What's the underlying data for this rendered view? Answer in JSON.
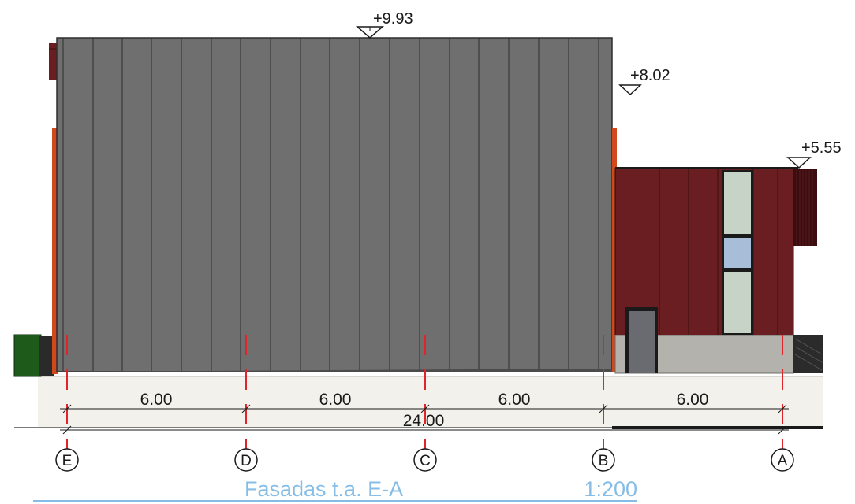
{
  "levels": [
    {
      "label": "+9.93"
    },
    {
      "label": "+8.02"
    },
    {
      "label": "+5.55"
    }
  ],
  "axes": [
    {
      "label": "E"
    },
    {
      "label": "D"
    },
    {
      "label": "C"
    },
    {
      "label": "B"
    },
    {
      "label": "A"
    }
  ],
  "spans": [
    {
      "label": "6.00"
    },
    {
      "label": "6.00"
    },
    {
      "label": "6.00"
    },
    {
      "label": "6.00"
    }
  ],
  "total": {
    "label": "24.00"
  },
  "title": {
    "name": "Fasadas t.a. E-A",
    "scale": "1:200"
  },
  "colors": {
    "main_cladding": "#6f6f6f",
    "annex_cladding": "#6b1e22",
    "ground": "#f3f1eb",
    "plinth": "#b3b2ac",
    "axis_line": "#e0242a",
    "accent_orange": "#d0491a",
    "title": "#86bde6",
    "window_frosted": "#c8d3c8",
    "window_blue": "#a7bdd8",
    "door": "#6a6b70",
    "green_block": "#1e5a1a"
  }
}
